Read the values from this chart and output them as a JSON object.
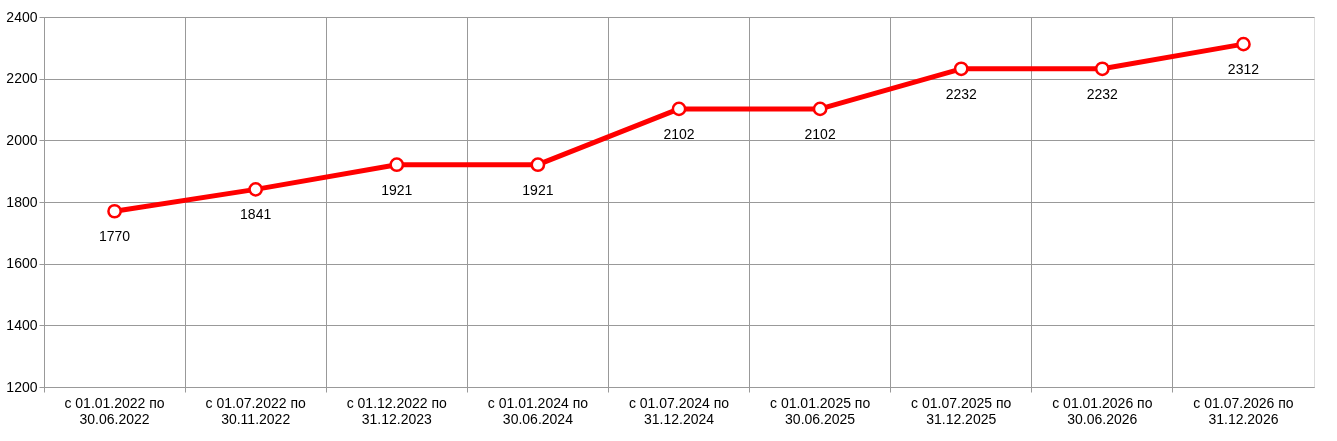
{
  "chart_data": {
    "type": "line",
    "categories": [
      "с 01.01.2022 по\n30.06.2022",
      "с 01.07.2022 по\n30.11.2022",
      "с 01.12.2022 по\n31.12.2023",
      "с 01.01.2024 по\n30.06.2024",
      "с 01.07.2024 по\n31.12.2024",
      "с 01.01.2025 по\n30.06.2025",
      "с 01.07.2025 по\n31.12.2025",
      "с 01.01.2026 по\n30.06.2026",
      "с 01.07.2026 по\n31.12.2026"
    ],
    "series": [
      {
        "color": "#ff0000",
        "values": [
          1770,
          1841,
          1921,
          1921,
          2102,
          2102,
          2232,
          2232,
          2312
        ]
      }
    ],
    "ylim": [
      1200,
      2400
    ],
    "yticks": [
      1200,
      1400,
      1600,
      1800,
      2000,
      2200,
      2400
    ],
    "data_labels": true,
    "grid": true,
    "marker": "circle",
    "line_style": "solid"
  }
}
